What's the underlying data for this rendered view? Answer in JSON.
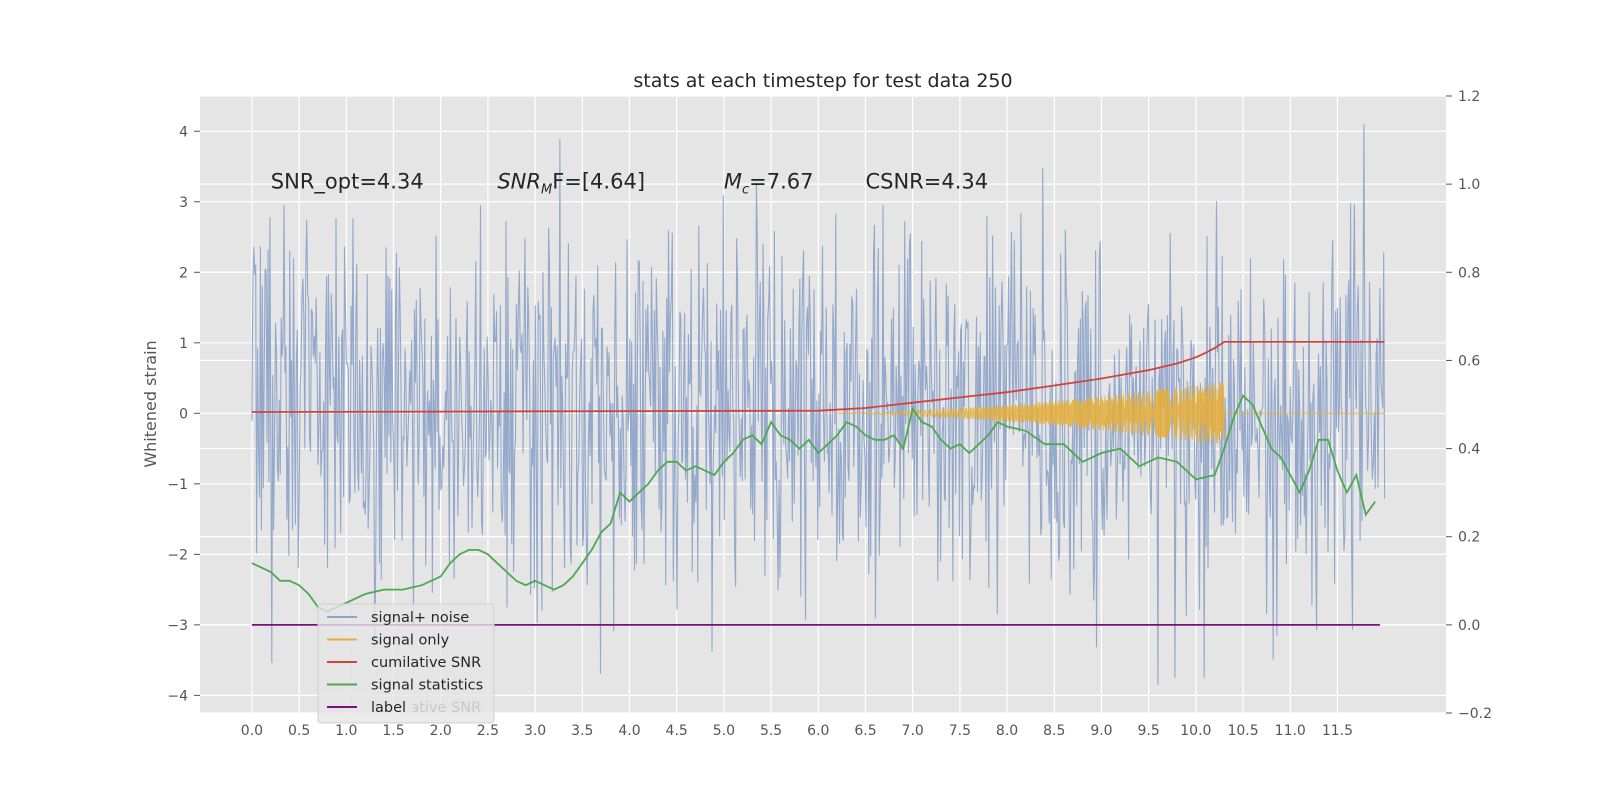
{
  "chart_data": {
    "type": "line",
    "title": "stats at each timestep for test data 250",
    "ylabel": "Whitened strain",
    "xlabel": "",
    "x_ticks": [
      "0.0",
      "0.5",
      "1.0",
      "1.5",
      "2.0",
      "2.5",
      "3.0",
      "3.5",
      "4.0",
      "4.5",
      "5.0",
      "5.5",
      "6.0",
      "6.5",
      "7.0",
      "7.5",
      "8.0",
      "8.5",
      "9.0",
      "9.5",
      "10.0",
      "10.5",
      "11.0",
      "11.5"
    ],
    "y_ticks_left": [
      "4",
      "3",
      "2",
      "1",
      "0",
      "−1",
      "−2",
      "−3",
      "−4"
    ],
    "y_ticks_right": [
      "1.2",
      "1.0",
      "0.8",
      "0.6",
      "0.4",
      "0.2",
      "0.0",
      "−0.2"
    ],
    "xlim": [
      -0.55,
      12.65
    ],
    "ylim_left": [
      -4.25,
      4.5
    ],
    "ylim_right": [
      -0.2,
      1.2
    ],
    "grid": true,
    "legend_placement": "lower-left",
    "annotations": [
      {
        "text": "SNR_opt=4.34",
        "x": 0.2,
        "y": 3.3
      },
      {
        "prefix": "SNR",
        "sub": "M",
        "suffix": "F=[4.64]",
        "x": 2.6,
        "y": 3.3
      },
      {
        "prefix": "M",
        "sub": "c",
        "suffix": "=7.67",
        "x": 5.0,
        "y": 3.3
      },
      {
        "text": "CSNR=4.34",
        "x": 6.5,
        "y": 3.3
      }
    ],
    "series": [
      {
        "name": "signal+ noise",
        "axis": "left",
        "color": "#8fa4c9",
        "noise_envelope": {
          "x_range": [
            0.0,
            12.0
          ],
          "typical_amplitude": 2.0,
          "max_positive": 4.1,
          "max_negative": -3.85,
          "sample_count": 1200
        }
      },
      {
        "name": "signal only",
        "axis": "left",
        "color": "#e5ae38",
        "chirp": {
          "start": 6.2,
          "end": 10.3,
          "amplitude_start": 0.0,
          "amplitude_end": 0.45,
          "tail_to": 12.0
        }
      },
      {
        "name": "cumilative SNR",
        "axis": "right",
        "color": "#d0443e",
        "x": [
          0.0,
          2.0,
          4.0,
          6.0,
          6.5,
          7.0,
          7.5,
          8.0,
          8.5,
          9.0,
          9.5,
          9.8,
          10.0,
          10.1,
          10.2,
          10.3,
          12.0
        ],
        "values": [
          0.483,
          0.484,
          0.485,
          0.486,
          0.492,
          0.504,
          0.516,
          0.528,
          0.543,
          0.559,
          0.578,
          0.593,
          0.607,
          0.617,
          0.628,
          0.642,
          0.642
        ]
      },
      {
        "name": "signal statistics",
        "axis": "right",
        "color": "#4ea852",
        "x": [
          0.0,
          0.1,
          0.2,
          0.3,
          0.4,
          0.5,
          0.6,
          0.7,
          0.8,
          0.9,
          1.0,
          1.2,
          1.4,
          1.6,
          1.8,
          2.0,
          2.1,
          2.2,
          2.3,
          2.4,
          2.5,
          2.6,
          2.7,
          2.8,
          2.9,
          3.0,
          3.1,
          3.2,
          3.3,
          3.4,
          3.5,
          3.6,
          3.7,
          3.8,
          3.9,
          4.0,
          4.1,
          4.2,
          4.3,
          4.4,
          4.5,
          4.6,
          4.7,
          4.8,
          4.9,
          5.0,
          5.1,
          5.2,
          5.3,
          5.4,
          5.5,
          5.6,
          5.7,
          5.8,
          5.9,
          6.0,
          6.1,
          6.2,
          6.3,
          6.4,
          6.5,
          6.6,
          6.7,
          6.8,
          6.9,
          7.0,
          7.1,
          7.2,
          7.3,
          7.4,
          7.5,
          7.6,
          7.7,
          7.8,
          7.9,
          8.0,
          8.2,
          8.4,
          8.6,
          8.8,
          9.0,
          9.2,
          9.4,
          9.6,
          9.8,
          10.0,
          10.2,
          10.3,
          10.4,
          10.5,
          10.6,
          10.7,
          10.8,
          10.9,
          11.0,
          11.1,
          11.2,
          11.3,
          11.4,
          11.5,
          11.6,
          11.7,
          11.8,
          11.9
        ],
        "values": [
          0.14,
          0.13,
          0.12,
          0.1,
          0.1,
          0.09,
          0.07,
          0.04,
          0.03,
          0.04,
          0.05,
          0.07,
          0.08,
          0.08,
          0.09,
          0.11,
          0.14,
          0.16,
          0.17,
          0.17,
          0.16,
          0.14,
          0.12,
          0.1,
          0.09,
          0.1,
          0.09,
          0.08,
          0.09,
          0.11,
          0.14,
          0.17,
          0.21,
          0.23,
          0.3,
          0.28,
          0.3,
          0.32,
          0.35,
          0.37,
          0.37,
          0.35,
          0.36,
          0.35,
          0.34,
          0.37,
          0.39,
          0.42,
          0.43,
          0.41,
          0.46,
          0.43,
          0.42,
          0.4,
          0.42,
          0.39,
          0.41,
          0.43,
          0.46,
          0.45,
          0.43,
          0.42,
          0.42,
          0.43,
          0.4,
          0.49,
          0.46,
          0.45,
          0.42,
          0.4,
          0.41,
          0.39,
          0.41,
          0.43,
          0.46,
          0.45,
          0.44,
          0.41,
          0.41,
          0.37,
          0.39,
          0.4,
          0.36,
          0.38,
          0.37,
          0.33,
          0.34,
          0.4,
          0.47,
          0.52,
          0.5,
          0.45,
          0.4,
          0.38,
          0.34,
          0.3,
          0.35,
          0.42,
          0.42,
          0.35,
          0.3,
          0.34,
          0.25,
          0.28
        ]
      },
      {
        "name": "label",
        "axis": "right",
        "color": "#7a0f80",
        "x": [
          0.0,
          11.95
        ],
        "values": [
          0.0,
          0.0
        ]
      }
    ],
    "legend": {
      "entries": [
        "signal+ noise",
        "signal only",
        "cumilative SNR",
        "signal statistics",
        "label"
      ],
      "ghost_text": "cumilative SNR"
    }
  }
}
